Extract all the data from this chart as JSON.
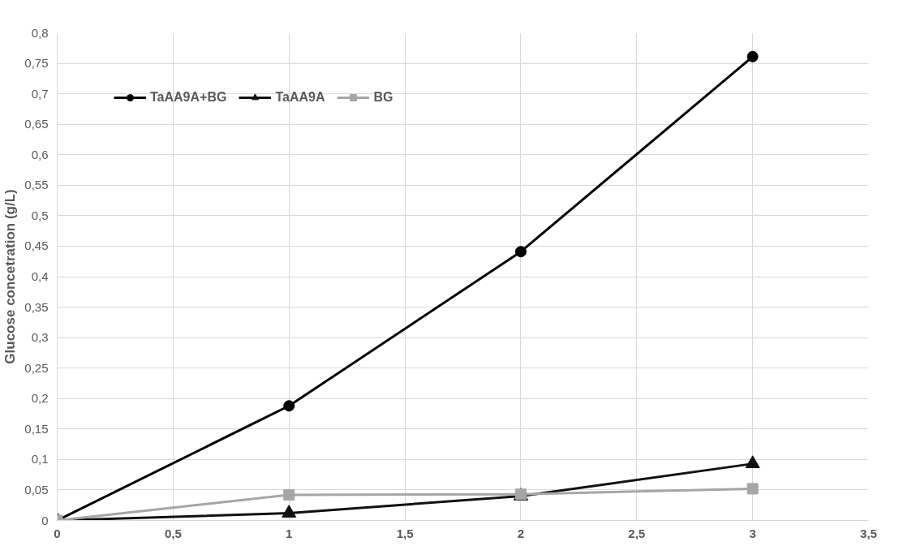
{
  "chart_data": {
    "type": "line",
    "ylabel": "Glucose concetration (g/L)",
    "x": [
      0,
      1,
      2,
      3
    ],
    "series": [
      {
        "name": "TaAA9A+BG",
        "color": "#000000",
        "marker": "circle",
        "values": [
          0,
          0.188,
          0.441,
          0.761
        ]
      },
      {
        "name": "TaAA9A",
        "color": "#111111",
        "marker": "triangle",
        "values": [
          0,
          0.012,
          0.04,
          0.093
        ]
      },
      {
        "name": "BG",
        "color": "#a6a6a6",
        "marker": "square",
        "values": [
          0,
          0.042,
          0.043,
          0.052
        ]
      }
    ],
    "xlim": [
      0,
      3.5
    ],
    "xticks": [
      0,
      {
        "value": 0.5,
        "label": "0,5"
      },
      1,
      {
        "value": 1.5,
        "label": "1,5"
      },
      2,
      {
        "value": 2.5,
        "label": "2,5"
      },
      3,
      {
        "value": 3.5,
        "label": "3,5"
      }
    ],
    "ylim": [
      0,
      0.8
    ],
    "yticks": [
      0,
      {
        "value": 0.05,
        "label": "0,05"
      },
      {
        "value": 0.1,
        "label": "0,1"
      },
      {
        "value": 0.15,
        "label": "0,15"
      },
      {
        "value": 0.2,
        "label": "0,2"
      },
      {
        "value": 0.25,
        "label": "0,25"
      },
      {
        "value": 0.3,
        "label": "0,3"
      },
      {
        "value": 0.35,
        "label": "0,35"
      },
      {
        "value": 0.4,
        "label": "0,4"
      },
      {
        "value": 0.45,
        "label": "0,45"
      },
      {
        "value": 0.5,
        "label": "0,5"
      },
      {
        "value": 0.55,
        "label": "0,55"
      },
      {
        "value": 0.6,
        "label": "0,6"
      },
      {
        "value": 0.65,
        "label": "0,65"
      },
      {
        "value": 0.7,
        "label": "0,7"
      },
      {
        "value": 0.75,
        "label": "0,75"
      },
      {
        "value": 0.8,
        "label": "0,8"
      }
    ],
    "grid": true,
    "legend": "top left",
    "line_style": "solid"
  }
}
